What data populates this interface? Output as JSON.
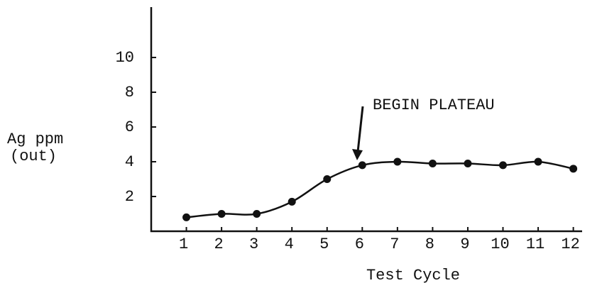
{
  "chart_data": {
    "type": "line",
    "xlabel": "Test Cycle",
    "ylabel": [
      "Ag ppm",
      "(out)"
    ],
    "annotation": "BEGIN PLATEAU",
    "x": [
      1,
      2,
      3,
      4,
      5,
      6,
      7,
      8,
      9,
      10,
      11,
      12
    ],
    "values": [
      0.8,
      1.0,
      1.0,
      1.7,
      3.0,
      3.8,
      4.0,
      3.9,
      3.9,
      3.8,
      4.0,
      3.6
    ],
    "color": "#111111",
    "xlim": [
      0,
      12.25
    ],
    "ylim": [
      0,
      12.9
    ],
    "xticks": [
      1,
      2,
      3,
      4,
      5,
      6,
      7,
      8,
      9,
      10,
      11,
      12
    ],
    "yticks": [
      2,
      4,
      6,
      8,
      10
    ],
    "grid": false,
    "smooth": true
  }
}
